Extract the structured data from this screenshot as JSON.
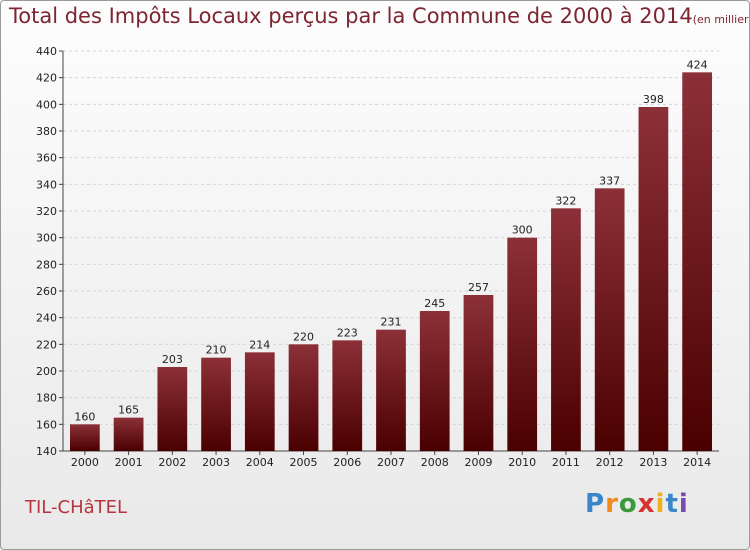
{
  "header": {
    "title": "Total des Impôts Locaux perçus par la Commune de 2000 à 2014",
    "unit": "(en milliers d'€)"
  },
  "footer": {
    "commune": "TIL-CHâTEL",
    "logo_letters": [
      "P",
      "r",
      "o",
      "x",
      "i",
      "t",
      "i"
    ],
    "logo_colors": [
      "#3a86c8",
      "#f08a1c",
      "#3a9a3a",
      "#d8322e",
      "#f0b01c",
      "#3a86c8",
      "#7a4ab0"
    ]
  },
  "chart_data": {
    "type": "bar",
    "categories": [
      "2000",
      "2001",
      "2002",
      "2003",
      "2004",
      "2005",
      "2006",
      "2007",
      "2008",
      "2009",
      "2010",
      "2011",
      "2012",
      "2013",
      "2014"
    ],
    "values": [
      160,
      165,
      203,
      210,
      214,
      220,
      223,
      231,
      245,
      257,
      300,
      322,
      337,
      398,
      424
    ],
    "title": "Total des Impôts Locaux perçus par la Commune de 2000 à 2014",
    "xlabel": "",
    "ylabel": "",
    "ylim": [
      140,
      440
    ],
    "yticks": [
      140,
      160,
      180,
      200,
      220,
      240,
      260,
      280,
      300,
      320,
      340,
      360,
      380,
      400,
      420,
      440
    ],
    "grid": true,
    "bar_color_top": "#8c3038",
    "bar_color_bottom": "#4a0000"
  }
}
